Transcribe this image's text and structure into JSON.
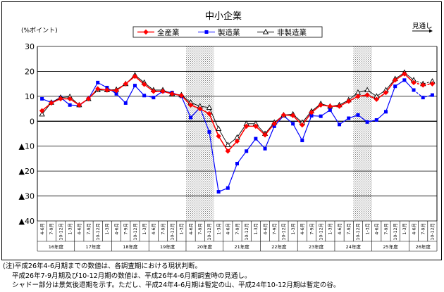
{
  "chart_data": {
    "type": "line",
    "title": "中小企業",
    "ylabel": "(%ポイント)",
    "ylim": [
      -40,
      30
    ],
    "yticks": [
      30,
      20,
      10,
      0,
      -10,
      -20,
      -30,
      -40
    ],
    "ytick_labels": [
      "30",
      "20",
      "10",
      "0",
      "▲10",
      "▲20",
      "▲30",
      "▲40"
    ],
    "grid": "horizontal",
    "legend_position": "top-center",
    "categories": [
      "4-6月",
      "7-9月",
      "10-12月",
      "1-3月",
      "4-6月",
      "7-9月",
      "10-12月",
      "1-3月",
      "4-6月",
      "7-9月",
      "10-12月",
      "1-3月",
      "4-6月",
      "7-9月",
      "10-12月",
      "1-3月",
      "4-6月",
      "7-9月",
      "10-12月",
      "1-3月",
      "4-6月",
      "7-9月",
      "10-12月",
      "1-3月",
      "4-6月",
      "7-9月",
      "10-12月",
      "1-3月",
      "4-6月",
      "7-9月",
      "10-12月",
      "1-3月",
      "4-6月",
      "7-9月",
      "10-12月",
      "1-3月",
      "4-6月",
      "7-9月",
      "10-12月",
      "1-3月",
      "4-6月",
      "7-9月",
      "10-12月"
    ],
    "fiscal_years": [
      {
        "label": "16年度",
        "start": 0,
        "end": 3
      },
      {
        "label": "17年度",
        "start": 4,
        "end": 7
      },
      {
        "label": "18年度",
        "start": 8,
        "end": 11
      },
      {
        "label": "19年度",
        "start": 12,
        "end": 15
      },
      {
        "label": "20年度",
        "start": 16,
        "end": 19
      },
      {
        "label": "21年度",
        "start": 20,
        "end": 23
      },
      {
        "label": "22年度",
        "start": 24,
        "end": 27
      },
      {
        "label": "23年度",
        "start": 28,
        "end": 31
      },
      {
        "label": "24年度",
        "start": 32,
        "end": 35
      },
      {
        "label": "25年度",
        "start": 36,
        "end": 39
      },
      {
        "label": "26年度",
        "start": 40,
        "end": 42
      }
    ],
    "shaded_ranges": [
      [
        16,
        18
      ],
      [
        34,
        35
      ]
    ],
    "forecast_start_index": 41,
    "forecast_label": "見通し",
    "series": [
      {
        "name": "全産業",
        "color": "#ff0000",
        "marker": "diamond",
        "values": [
          4.2,
          7.3,
          9.0,
          9.0,
          6.5,
          9.0,
          13.0,
          12.5,
          12.3,
          15.0,
          18.0,
          14.8,
          12.0,
          12.0,
          11.0,
          10.3,
          6.5,
          5.0,
          3.0,
          -6.0,
          -12.0,
          -8.0,
          -2.0,
          -2.0,
          -5.5,
          -1.0,
          2.5,
          2.3,
          -1.5,
          3.5,
          6.5,
          6.0,
          6.0,
          8.0,
          10.0,
          10.5,
          8.8,
          11.5,
          16.5,
          19.0,
          15.5,
          14.5,
          15.0
        ]
      },
      {
        "name": "製造業",
        "color": "#0000ff",
        "marker": "square",
        "values": [
          9.0,
          7.5,
          9.5,
          6.5,
          6.3,
          9.0,
          15.5,
          13.5,
          11.0,
          7.3,
          14.3,
          10.3,
          9.5,
          12.0,
          11.5,
          10.0,
          1.5,
          5.5,
          -4.3,
          -28.3,
          -26.8,
          -17.0,
          -12.0,
          -7.0,
          -11.0,
          -2.0,
          2.2,
          -1.0,
          -7.7,
          2.2,
          2.0,
          4.5,
          -1.3,
          1.2,
          2.5,
          -0.3,
          0.5,
          3.8,
          14.0,
          16.5,
          12.5,
          9.5,
          10.5
        ]
      },
      {
        "name": "非製造業",
        "color": "#000000",
        "marker": "triangle",
        "values": [
          2.8,
          7.5,
          9.5,
          9.8,
          6.5,
          9.0,
          12.5,
          12.5,
          12.7,
          15.0,
          18.5,
          15.5,
          12.5,
          12.5,
          11.0,
          10.5,
          7.5,
          6.0,
          5.5,
          -3.0,
          -9.5,
          -6.5,
          -1.0,
          -1.0,
          -5.0,
          -0.5,
          2.5,
          2.8,
          -0.5,
          4.0,
          7.0,
          6.0,
          6.5,
          8.5,
          11.5,
          12.5,
          10.0,
          12.5,
          17.0,
          19.5,
          16.5,
          15.0,
          16.0
        ]
      }
    ]
  },
  "notes": [
    "(注)平成26年4-6月期までの数値は、各調査期における現状判断。",
    "平成26年7-9月期及び10-12月期の数値は、平成26年4-6月期調査時の見通し。",
    "シャドー部分は景気後退期を示す。ただし、平成24年4-6月期は暫定の山、平成24年10-12月期は暫定の谷。"
  ]
}
